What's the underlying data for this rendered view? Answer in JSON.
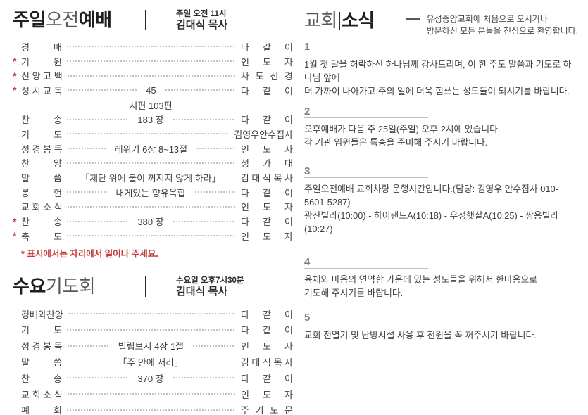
{
  "sunday": {
    "title": {
      "bold1": "주일",
      "light": "오전",
      "bold2": "예배"
    },
    "time": "주일 오전 11시",
    "leader": "김대식 목사",
    "rows": [
      {
        "star": "",
        "label": "경 배",
        "center": "",
        "right": "다 같 이"
      },
      {
        "star": "*",
        "label": "기 원",
        "center": "",
        "right": "인 도 자"
      },
      {
        "star": "*",
        "label": "신 앙 고 백",
        "center": "",
        "right": "사 도 신 경"
      },
      {
        "star": "*",
        "label": "성 시 교 독",
        "center": "45",
        "right": "다 같 이"
      },
      {
        "star": "",
        "label": "",
        "center": "시편 103편",
        "right": ""
      },
      {
        "star": "",
        "label": "찬 송",
        "center": "183 장",
        "right": "다 같 이"
      },
      {
        "star": "",
        "label": "기 도",
        "center": "",
        "right": "김영우안수집사"
      },
      {
        "star": "",
        "label": "성 경 봉 독",
        "center": "레위기 6장 8~13절",
        "right": "인 도 자"
      },
      {
        "star": "",
        "label": "찬 양",
        "center": "",
        "right": "성 가 대"
      },
      {
        "star": "",
        "label": "말 씀",
        "center": "「제단 위에 불이 꺼지지 않게 하라」",
        "right": "김 대 식 목 사"
      },
      {
        "star": "",
        "label": "봉 헌",
        "center": "내게있는 향유옥합",
        "right": "다 같 이"
      },
      {
        "star": "",
        "label": "교 회 소 식",
        "center": "",
        "right": "인 도 자"
      },
      {
        "star": "*",
        "label": "찬 송",
        "center": "380 장",
        "right": "다 같 이"
      },
      {
        "star": "*",
        "label": "축 도",
        "center": "",
        "right": "인 도 자"
      }
    ],
    "note": "* 표시에서는 자리에서 일어나 주세요."
  },
  "wednesday": {
    "title": {
      "bold": "수요",
      "light": "기도회"
    },
    "time": "수요일 오후7시30분",
    "leader": "김대식 목사",
    "rows": [
      {
        "label": "경배와찬양",
        "center": "",
        "right": "다 같 이"
      },
      {
        "label": "기 도",
        "center": "",
        "right": "다 같 이"
      },
      {
        "label": "성 경 봉 독",
        "center": "빌립보서 4장 1절",
        "right": "인 도 자"
      },
      {
        "label": "말 씀",
        "center": "「주 안에 서라」",
        "right": "김 대 식 목 사"
      },
      {
        "label": "찬 송",
        "center": "370 장",
        "right": "다 같 이"
      },
      {
        "label": "교 회 소 식",
        "center": "",
        "right": "인 도 자"
      },
      {
        "label": "폐 회",
        "center": "",
        "right": "주 기 도 문"
      }
    ]
  },
  "news": {
    "title": {
      "light": "교회",
      "bold": "소식"
    },
    "welcome": [
      "유성중앙교회에 처음으로 오시거나",
      "방문하신 모든 분들을 진심으로 환영합니다."
    ],
    "items": [
      {
        "num": "1",
        "lines": [
          "1월 첫 달을 허락하신 하나님께 감사드리며, 이 한 주도 말씀과 기도로 하나님 앞에",
          "더 가까이 나아가고 주의 일에 더욱 힘쓰는 성도들이 되시기를 바랍니다."
        ]
      },
      {
        "num": "2",
        "lines": [
          "오후예배가 다음 주 25일(주일) 오후 2시에 있습니다.",
          "각 기관 임원들은 특송을 준비해 주시기 바랍니다."
        ]
      },
      {
        "num": "3",
        "lines": [
          "주일오전예배 교회차량 운행시간입니다.(담당: 김영우 안수집사 010-5601-5287)",
          "광산빌라(10:00) - 하이랜드A(10:18) - 우성햇살A(10:25) - 쌍용빌라(10:27)"
        ]
      },
      {
        "num": "4",
        "lines": [
          "육체와 마음의 연약함 가운데 있는 성도들을 위해서 한마음으로",
          "기도해 주시기를 바랍니다."
        ]
      },
      {
        "num": "5",
        "lines": [
          "교회 전열기 및 난방시설 사용 후 전원을 꼭 꺼주시기 바랍니다."
        ]
      }
    ]
  }
}
